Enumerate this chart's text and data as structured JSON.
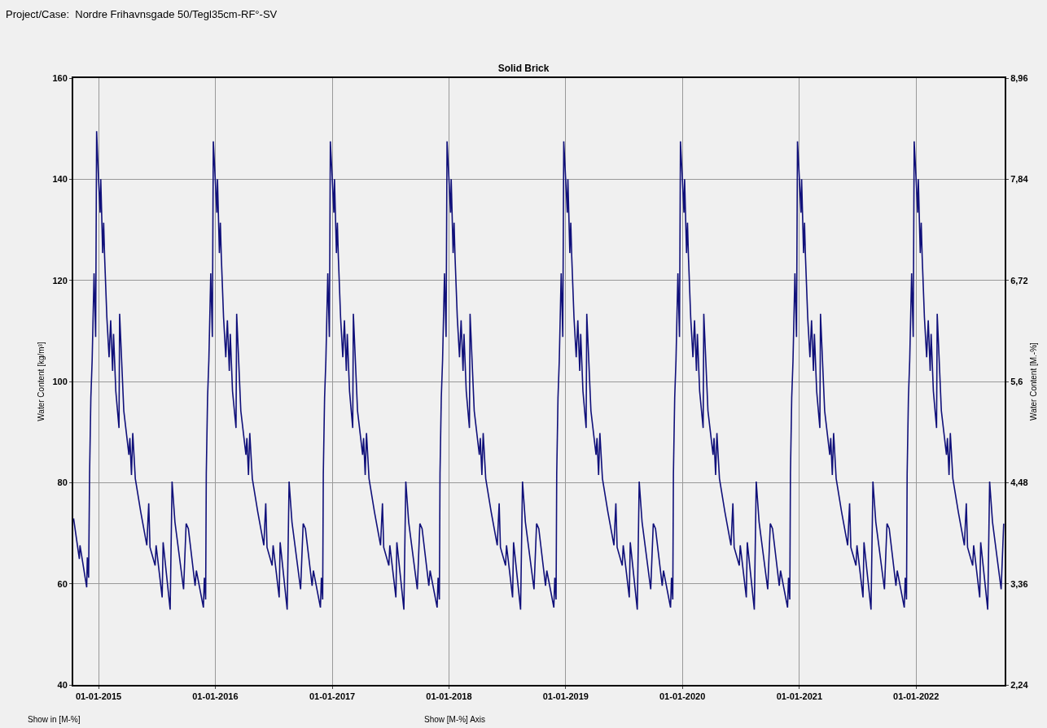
{
  "chart_data": {
    "type": "line",
    "title": "Solid Brick",
    "subtitle": "Project/Case:  Nordre Frihavnsgade 50/Tegl35cm-RF°-SV",
    "ylabel": "Water Content [kg/m³]",
    "y2label": "Water Content [M.-%]",
    "annotations": [
      "Show in [M-%]",
      "Show [M-%] Axis"
    ],
    "xlim": [
      "2014-10-14",
      "2022-10-05"
    ],
    "xticks": [
      {
        "value": "2015-01-01",
        "label": "01-01-2015"
      },
      {
        "value": "2016-01-01",
        "label": "01-01-2016"
      },
      {
        "value": "2017-01-01",
        "label": "01-01-2017"
      },
      {
        "value": "2018-01-01",
        "label": "01-01-2018"
      },
      {
        "value": "2019-01-01",
        "label": "01-01-2019"
      },
      {
        "value": "2020-01-01",
        "label": "01-01-2020"
      },
      {
        "value": "2021-01-01",
        "label": "01-01-2021"
      },
      {
        "value": "2022-01-01",
        "label": "01-01-2022"
      }
    ],
    "ylim": [
      40,
      160
    ],
    "yticks": [
      40,
      60,
      80,
      100,
      120,
      140,
      160
    ],
    "y2lim": [
      2.24,
      8.96
    ],
    "y2ticks": [
      {
        "value": 2.24,
        "label": "2,24"
      },
      {
        "value": 3.36,
        "label": "3,36"
      },
      {
        "value": 4.48,
        "label": "4,48"
      },
      {
        "value": 5.6,
        "label": "5,6"
      },
      {
        "value": 6.72,
        "label": "6,72"
      },
      {
        "value": 7.84,
        "label": "7,84"
      },
      {
        "value": 8.96,
        "label": "8,96"
      }
    ],
    "grid": true,
    "marker": "none",
    "line_style": "solid",
    "series": [
      {
        "color": "#10107a",
        "x": [
          "2014-10-15",
          "2014-11-02",
          "2014-11-04",
          "2014-11-25",
          "2014-11-27",
          "2014-12-01",
          "2014-12-04",
          "2014-12-08",
          "2014-12-12",
          "2014-12-18",
          "2014-12-23",
          "2014-12-26",
          "2015-01-01",
          "2015-01-06",
          "2015-01-08",
          "2015-01-14",
          "2015-01-17",
          "2015-01-20",
          "2015-01-27",
          "2015-02-03",
          "2015-02-08",
          "2015-02-14",
          "2015-02-17",
          "2015-02-24",
          "2015-03-06",
          "2015-03-08",
          "2015-03-21",
          "2015-04-06",
          "2015-04-09",
          "2015-04-14",
          "2015-04-18",
          "2015-04-26",
          "2015-05-13",
          "2015-06-01",
          "2015-06-07",
          "2015-06-11",
          "2015-06-27",
          "2015-06-30",
          "2015-07-19",
          "2015-07-22",
          "2015-08-13",
          "2015-08-19",
          "2015-08-28",
          "2015-09-24",
          "2015-10-02",
          "2015-10-09",
          "2015-10-30",
          "2015-11-03",
          "2015-11-25",
          "2015-11-28",
          "2015-12-02",
          "2015-12-04",
          "2015-12-08",
          "2015-12-12",
          "2015-12-18",
          "2015-12-23",
          "2015-12-26",
          "2016-01-01",
          "2016-01-06",
          "2016-01-08",
          "2016-01-14",
          "2016-01-17",
          "2016-01-20",
          "2016-01-27",
          "2016-02-03",
          "2016-02-08",
          "2016-02-14",
          "2016-02-17",
          "2016-02-24",
          "2016-03-06",
          "2016-03-08",
          "2016-03-21",
          "2016-04-06",
          "2016-04-09",
          "2016-04-14",
          "2016-04-18",
          "2016-04-26",
          "2016-05-13",
          "2016-06-01",
          "2016-06-07",
          "2016-06-11",
          "2016-06-27",
          "2016-06-30",
          "2016-07-19",
          "2016-07-22",
          "2016-08-13",
          "2016-08-19",
          "2016-08-28",
          "2016-09-24",
          "2016-10-02",
          "2016-10-09",
          "2016-10-30",
          "2016-11-03",
          "2016-11-25",
          "2016-11-28",
          "2016-12-02",
          "2016-12-04",
          "2016-12-08",
          "2016-12-12",
          "2016-12-18",
          "2016-12-23",
          "2016-12-26",
          "2017-01-01",
          "2017-01-06",
          "2017-01-08",
          "2017-01-14",
          "2017-01-17",
          "2017-01-20",
          "2017-01-27",
          "2017-02-03",
          "2017-02-08",
          "2017-02-14",
          "2017-02-17",
          "2017-02-24",
          "2017-03-06",
          "2017-03-08",
          "2017-03-21",
          "2017-04-06",
          "2017-04-09",
          "2017-04-14",
          "2017-04-18",
          "2017-04-26",
          "2017-05-13",
          "2017-06-01",
          "2017-06-07",
          "2017-06-11",
          "2017-06-27",
          "2017-06-30",
          "2017-07-19",
          "2017-07-22",
          "2017-08-13",
          "2017-08-19",
          "2017-08-28",
          "2017-09-24",
          "2017-10-02",
          "2017-10-09",
          "2017-10-30",
          "2017-11-03",
          "2017-11-25",
          "2017-11-28",
          "2017-12-02",
          "2017-12-04",
          "2017-12-08",
          "2017-12-12",
          "2017-12-18",
          "2017-12-23",
          "2017-12-26",
          "2018-01-01",
          "2018-01-06",
          "2018-01-08",
          "2018-01-14",
          "2018-01-17",
          "2018-01-20",
          "2018-01-27",
          "2018-02-03",
          "2018-02-08",
          "2018-02-14",
          "2018-02-17",
          "2018-02-24",
          "2018-03-06",
          "2018-03-08",
          "2018-03-21",
          "2018-04-06",
          "2018-04-09",
          "2018-04-14",
          "2018-04-18",
          "2018-04-26",
          "2018-05-13",
          "2018-06-01",
          "2018-06-07",
          "2018-06-11",
          "2018-06-27",
          "2018-06-30",
          "2018-07-19",
          "2018-07-22",
          "2018-08-13",
          "2018-08-19",
          "2018-08-28",
          "2018-09-24",
          "2018-10-02",
          "2018-10-09",
          "2018-10-30",
          "2018-11-03",
          "2018-11-25",
          "2018-11-28",
          "2018-12-02",
          "2018-12-04",
          "2018-12-08",
          "2018-12-12",
          "2018-12-18",
          "2018-12-23",
          "2018-12-26",
          "2019-01-01",
          "2019-01-06",
          "2019-01-08",
          "2019-01-14",
          "2019-01-17",
          "2019-01-20",
          "2019-01-27",
          "2019-02-03",
          "2019-02-08",
          "2019-02-14",
          "2019-02-17",
          "2019-02-24",
          "2019-03-06",
          "2019-03-08",
          "2019-03-21",
          "2019-04-06",
          "2019-04-09",
          "2019-04-14",
          "2019-04-18",
          "2019-04-26",
          "2019-05-13",
          "2019-06-01",
          "2019-06-07",
          "2019-06-11",
          "2019-06-27",
          "2019-06-30",
          "2019-07-19",
          "2019-07-22",
          "2019-08-13",
          "2019-08-19",
          "2019-08-28",
          "2019-09-24",
          "2019-10-02",
          "2019-10-09",
          "2019-10-30",
          "2019-11-03",
          "2019-11-25",
          "2019-11-28",
          "2019-12-02",
          "2019-12-04",
          "2019-12-08",
          "2019-12-12",
          "2019-12-18",
          "2019-12-23",
          "2019-12-26",
          "2020-01-01",
          "2020-01-06",
          "2020-01-08",
          "2020-01-14",
          "2020-01-17",
          "2020-01-20",
          "2020-01-27",
          "2020-02-03",
          "2020-02-08",
          "2020-02-14",
          "2020-02-17",
          "2020-02-24",
          "2020-03-06",
          "2020-03-08",
          "2020-03-21",
          "2020-04-06",
          "2020-04-09",
          "2020-04-14",
          "2020-04-18",
          "2020-04-26",
          "2020-05-13",
          "2020-06-01",
          "2020-06-07",
          "2020-06-11",
          "2020-06-27",
          "2020-06-30",
          "2020-07-19",
          "2020-07-22",
          "2020-08-13",
          "2020-08-19",
          "2020-08-28",
          "2020-09-24",
          "2020-10-02",
          "2020-10-09",
          "2020-10-30",
          "2020-11-03",
          "2020-11-25",
          "2020-11-28",
          "2020-12-02",
          "2020-12-04",
          "2020-12-08",
          "2020-12-12",
          "2020-12-18",
          "2020-12-23",
          "2020-12-26",
          "2021-01-01",
          "2021-01-06",
          "2021-01-08",
          "2021-01-14",
          "2021-01-17",
          "2021-01-20",
          "2021-01-27",
          "2021-02-03",
          "2021-02-08",
          "2021-02-14",
          "2021-02-17",
          "2021-02-24",
          "2021-03-06",
          "2021-03-08",
          "2021-03-21",
          "2021-04-06",
          "2021-04-09",
          "2021-04-14",
          "2021-04-18",
          "2021-04-26",
          "2021-05-13",
          "2021-06-01",
          "2021-06-07",
          "2021-06-11",
          "2021-06-27",
          "2021-06-30",
          "2021-07-19",
          "2021-07-22",
          "2021-08-13",
          "2021-08-19",
          "2021-08-28",
          "2021-09-24",
          "2021-10-02",
          "2021-10-09",
          "2021-10-30",
          "2021-11-03",
          "2021-11-25",
          "2021-11-28",
          "2021-12-02",
          "2021-12-04",
          "2021-12-08",
          "2021-12-12",
          "2021-12-18",
          "2021-12-23",
          "2021-12-26",
          "2022-01-01",
          "2022-01-06",
          "2022-01-08",
          "2022-01-14",
          "2022-01-17",
          "2022-01-20",
          "2022-01-27",
          "2022-02-03",
          "2022-02-08",
          "2022-02-14",
          "2022-02-17",
          "2022-02-24",
          "2022-03-06",
          "2022-03-08",
          "2022-03-21",
          "2022-04-06",
          "2022-04-09",
          "2022-04-14",
          "2022-04-18",
          "2022-04-26",
          "2022-05-13",
          "2022-06-01",
          "2022-06-07",
          "2022-06-11",
          "2022-06-27",
          "2022-06-30",
          "2022-07-19",
          "2022-07-22",
          "2022-08-13",
          "2022-08-19",
          "2022-08-28",
          "2022-09-24",
          "2022-10-02"
        ],
        "values": [
          72.9,
          64.9,
          67.6,
          59.3,
          65.2,
          61.2,
          81.8,
          96.8,
          104.1,
          121.4,
          108.8,
          149.5,
          140,
          133.4,
          140,
          125.4,
          131.4,
          124.7,
          112.7,
          104.8,
          112.1,
          102.1,
          109.4,
          98.1,
          90.8,
          113.4,
          94.2,
          85.5,
          88.8,
          81.5,
          89.8,
          80.8,
          74.2,
          67.6,
          75.9,
          67.2,
          63.6,
          67.6,
          57.3,
          68.2,
          54.9,
          80.2,
          72.2,
          58.9,
          71.9,
          70.9,
          59.6,
          62.6,
          55.3,
          61.2,
          56.9,
          81.8,
          96.8,
          104.1,
          121.4,
          108.8,
          147.5,
          140,
          133.4,
          140,
          125.4,
          131.4,
          124.7,
          112.7,
          104.8,
          112.1,
          102.1,
          109.4,
          98.1,
          90.8,
          113.4,
          94.2,
          85.5,
          88.8,
          81.5,
          89.8,
          80.8,
          74.2,
          67.6,
          75.9,
          67.2,
          63.6,
          67.6,
          57.3,
          68.2,
          54.9,
          80.2,
          72.2,
          58.9,
          71.9,
          70.9,
          59.6,
          62.6,
          55.3,
          61.2,
          56.9,
          81.8,
          96.8,
          104.1,
          121.4,
          108.8,
          147.5,
          140,
          133.4,
          140,
          125.4,
          131.4,
          124.7,
          112.7,
          104.8,
          112.1,
          102.1,
          109.4,
          98.1,
          90.8,
          113.4,
          94.2,
          85.5,
          88.8,
          81.5,
          89.8,
          80.8,
          74.2,
          67.6,
          75.9,
          67.2,
          63.6,
          67.6,
          57.3,
          68.2,
          54.9,
          80.2,
          72.2,
          58.9,
          71.9,
          70.9,
          59.6,
          62.6,
          55.3,
          61.2,
          56.9,
          81.8,
          96.8,
          104.1,
          121.4,
          108.8,
          147.5,
          140,
          133.4,
          140,
          125.4,
          131.4,
          124.7,
          112.7,
          104.8,
          112.1,
          102.1,
          109.4,
          98.1,
          90.8,
          113.4,
          94.2,
          85.5,
          88.8,
          81.5,
          89.8,
          80.8,
          74.2,
          67.6,
          75.9,
          67.2,
          63.6,
          67.6,
          57.3,
          68.2,
          54.9,
          80.2,
          72.2,
          58.9,
          71.9,
          70.9,
          59.6,
          62.6,
          55.3,
          61.2,
          56.9,
          81.8,
          96.8,
          104.1,
          121.4,
          108.8,
          147.5,
          140,
          133.4,
          140,
          125.4,
          131.4,
          124.7,
          112.7,
          104.8,
          112.1,
          102.1,
          109.4,
          98.1,
          90.8,
          113.4,
          94.2,
          85.5,
          88.8,
          81.5,
          89.8,
          80.8,
          74.2,
          67.6,
          75.9,
          67.2,
          63.6,
          67.6,
          57.3,
          68.2,
          54.9,
          80.2,
          72.2,
          58.9,
          71.9,
          70.9,
          59.6,
          62.6,
          55.3,
          61.2,
          56.9,
          81.8,
          96.8,
          104.1,
          121.4,
          108.8,
          147.5,
          140,
          133.4,
          140,
          125.4,
          131.4,
          124.7,
          112.7,
          104.8,
          112.1,
          102.1,
          109.4,
          98.1,
          90.8,
          113.4,
          94.2,
          85.5,
          88.8,
          81.5,
          89.8,
          80.8,
          74.2,
          67.6,
          75.9,
          67.2,
          63.6,
          67.6,
          57.3,
          68.2,
          54.9,
          80.2,
          72.2,
          58.9,
          71.9,
          70.9,
          59.6,
          62.6,
          55.3,
          61.2,
          56.9,
          81.8,
          96.8,
          104.1,
          121.4,
          108.8,
          147.5,
          140,
          133.4,
          140,
          125.4,
          131.4,
          124.7,
          112.7,
          104.8,
          112.1,
          102.1,
          109.4,
          98.1,
          90.8,
          113.4,
          94.2,
          85.5,
          88.8,
          81.5,
          89.8,
          80.8,
          74.2,
          67.6,
          75.9,
          67.2,
          63.6,
          67.6,
          57.3,
          68.2,
          54.9,
          80.2,
          72.2,
          58.9,
          71.9,
          70.9,
          59.6,
          62.6,
          55.3,
          61.2,
          56.9,
          81.8,
          96.8,
          104.1,
          121.4,
          108.8,
          147.5,
          140,
          133.4,
          140,
          125.4,
          131.4,
          124.7,
          112.7,
          104.8,
          112.1,
          102.1,
          109.4,
          98.1,
          90.8,
          113.4,
          94.2,
          85.5,
          88.8,
          81.5,
          89.8,
          80.8,
          74.2,
          67.6,
          75.9,
          67.2,
          63.6,
          67.6,
          57.3,
          68.2,
          54.9,
          80.2,
          72.2,
          58.9,
          71.9
        ]
      }
    ]
  }
}
